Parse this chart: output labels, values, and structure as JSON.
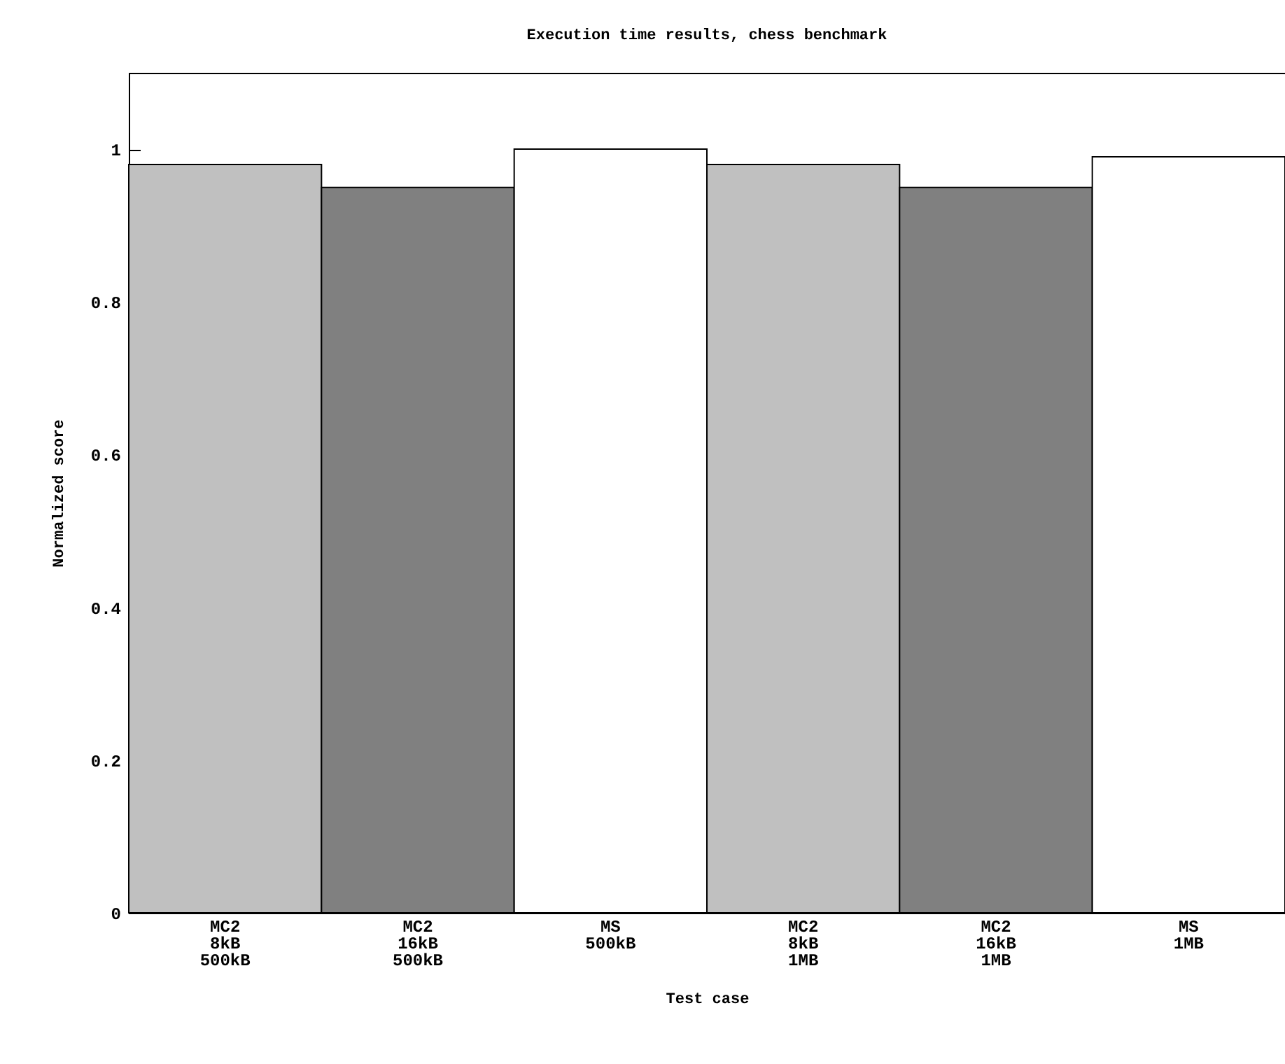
{
  "chart_data": {
    "type": "bar",
    "title": "Execution time results, chess benchmark",
    "xlabel": "Test case",
    "ylabel": "Normalized score",
    "categories": [
      "MC2\n8kB\n500kB",
      "MC2\n16kB\n500kB",
      "MS\n500kB",
      "MC2\n8kB\n1MB",
      "MC2\n16kB\n1MB",
      "MS\n1MB"
    ],
    "values": [
      0.98,
      0.95,
      1.0,
      0.98,
      0.95,
      0.99
    ],
    "colors": [
      "#c0c0c0",
      "#808080",
      "#ffffff",
      "#c0c0c0",
      "#808080",
      "#ffffff"
    ],
    "ylim": [
      0,
      1.1
    ],
    "yticks": [
      0,
      0.2,
      0.4,
      0.6,
      0.8,
      1
    ],
    "grid": false
  }
}
